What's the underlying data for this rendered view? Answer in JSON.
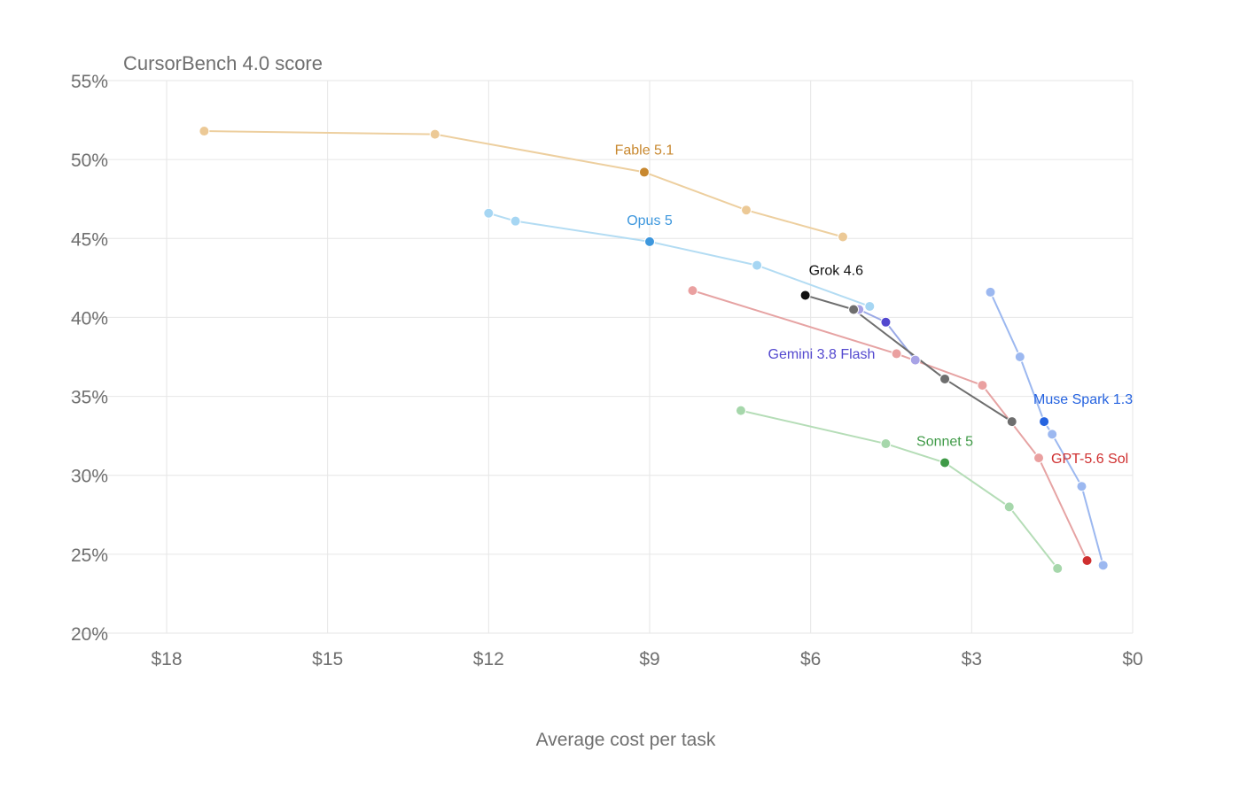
{
  "chart_data": {
    "type": "scatter",
    "title": "CursorBench 4.0 score",
    "xlabel": "Average cost per task",
    "ylabel": "",
    "x_reversed": true,
    "xlim": [
      0,
      18
    ],
    "ylim": [
      20,
      55
    ],
    "x_ticks": [
      18,
      15,
      12,
      9,
      6,
      3,
      0
    ],
    "x_tick_labels": [
      "$18",
      "$15",
      "$12",
      "$9",
      "$6",
      "$3",
      "$0"
    ],
    "y_ticks": [
      20,
      25,
      30,
      35,
      40,
      45,
      50,
      55
    ],
    "y_tick_labels": [
      "20%",
      "25%",
      "30%",
      "35%",
      "40%",
      "45%",
      "50%",
      "55%"
    ],
    "grid": true,
    "series": [
      {
        "name": "Fable 5.1",
        "color": "#c8882f",
        "light_color": "#ecc996",
        "line_color": "#edcf9f",
        "highlight_index": 2,
        "points": [
          [
            17.3,
            51.8
          ],
          [
            13.0,
            51.6
          ],
          [
            9.1,
            49.2
          ],
          [
            7.2,
            46.8
          ],
          [
            5.4,
            45.1
          ]
        ]
      },
      {
        "name": "Opus 5",
        "color": "#3d97dd",
        "light_color": "#a6d6f3",
        "line_color": "#b3dcf3",
        "highlight_index": 2,
        "points": [
          [
            12.0,
            46.6
          ],
          [
            11.5,
            46.1
          ],
          [
            9.0,
            44.8
          ],
          [
            7.0,
            43.3
          ],
          [
            4.9,
            40.7
          ]
        ]
      },
      {
        "name": "Gemini 3.8 Flash",
        "color": "#5348cf",
        "light_color": "#a8a3e6",
        "line_color": "#9aa9e6",
        "highlight_index": 1,
        "points": [
          [
            5.1,
            40.5
          ],
          [
            4.6,
            39.7
          ],
          [
            4.05,
            37.3
          ]
        ]
      },
      {
        "name": "GPT-5.6 Sol",
        "color": "#cf2f2f",
        "light_color": "#eaa0a0",
        "line_color": "#e6a3a3",
        "highlight_index": 4,
        "points": [
          [
            8.2,
            41.7
          ],
          [
            4.4,
            37.7
          ],
          [
            2.8,
            35.7
          ],
          [
            1.75,
            31.1
          ],
          [
            0.85,
            24.6
          ]
        ]
      },
      {
        "name": "Grok 4.6",
        "color": "#111111",
        "light_color": "#6e6e6e",
        "line_color": "#6e6e6e",
        "highlight_index": 0,
        "points": [
          [
            6.1,
            41.4
          ],
          [
            5.2,
            40.5
          ],
          [
            3.5,
            36.1
          ],
          [
            2.25,
            33.4
          ]
        ]
      },
      {
        "name": "Muse Spark 1.3",
        "color": "#2563e0",
        "light_color": "#9cb8f0",
        "line_color": "#9cb8f0",
        "highlight_index": 2,
        "points": [
          [
            2.65,
            41.6
          ],
          [
            2.1,
            37.5
          ],
          [
            1.65,
            33.4
          ],
          [
            1.5,
            32.6
          ],
          [
            0.95,
            29.3
          ],
          [
            0.55,
            24.3
          ]
        ]
      },
      {
        "name": "Sonnet 5",
        "color": "#3f9a47",
        "light_color": "#a6d7ab",
        "line_color": "#b5ddb7",
        "highlight_index": 2,
        "points": [
          [
            7.3,
            34.1
          ],
          [
            4.6,
            32.0
          ],
          [
            3.5,
            30.8
          ],
          [
            2.3,
            28.0
          ],
          [
            1.4,
            24.1
          ]
        ]
      }
    ],
    "labels": [
      {
        "text": "Fable 5.1",
        "series": 0,
        "x": 9.1,
        "y": 49.2,
        "anchor": "middle",
        "dx": 0,
        "dy": -20
      },
      {
        "text": "Opus 5",
        "series": 1,
        "x": 9.0,
        "y": 44.8,
        "anchor": "middle",
        "dx": 0,
        "dy": -19
      },
      {
        "text": "Grok 4.6",
        "series": 4,
        "x": 6.1,
        "y": 41.4,
        "anchor": "start",
        "dx": 4,
        "dy": -23
      },
      {
        "text": "Gemini 3.8 Flash",
        "series": 2,
        "x": 4.6,
        "y": 39.7,
        "anchor": "end",
        "dx": -12,
        "dy": 41
      },
      {
        "text": "Muse Spark 1.3",
        "series": 5,
        "x": 1.65,
        "y": 33.4,
        "anchor": "middle",
        "dx": 44,
        "dy": -20
      },
      {
        "text": "GPT-5.6 Sol",
        "series": 3,
        "x": 1.75,
        "y": 31.1,
        "anchor": "start",
        "dx": 14,
        "dy": 6
      },
      {
        "text": "Sonnet 5",
        "series": 6,
        "x": 3.5,
        "y": 30.8,
        "anchor": "middle",
        "dx": 0,
        "dy": -19
      }
    ]
  }
}
